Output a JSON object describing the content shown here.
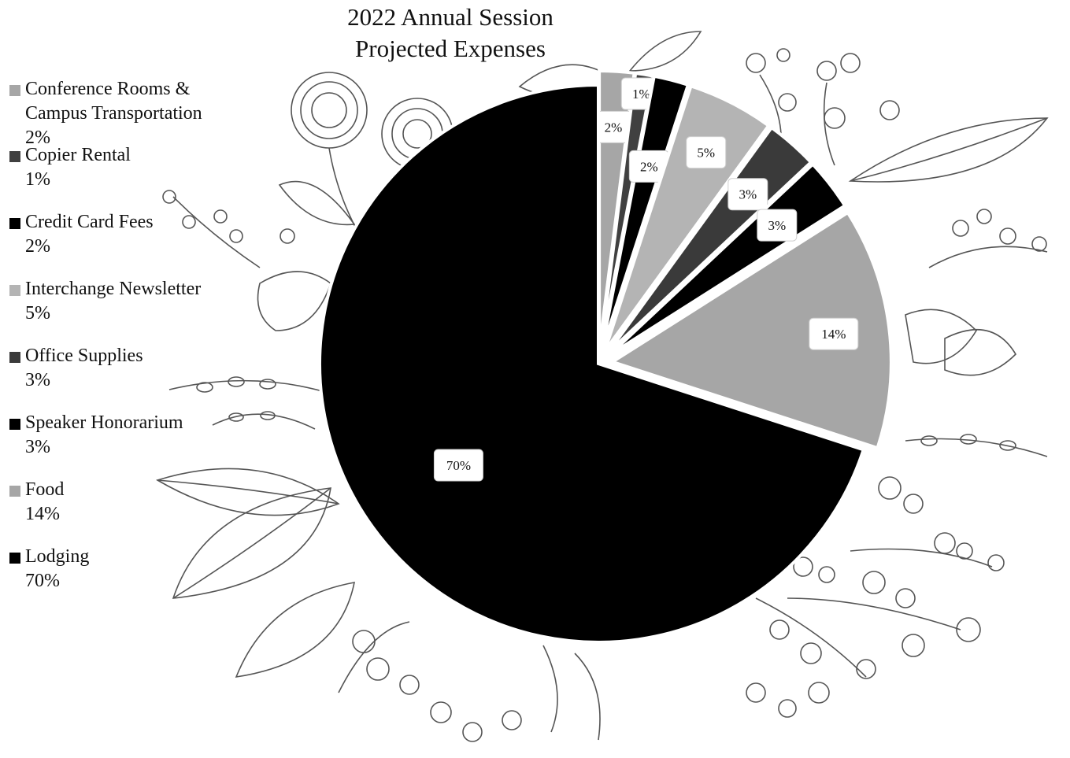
{
  "chart_data": {
    "type": "pie",
    "title_lines": [
      "2022 Annual Session",
      "Projected Expenses"
    ],
    "legend_position": "left",
    "series": [
      {
        "name": "Conference Rooms & Campus Transportation",
        "label": "2%",
        "value": 2,
        "color": "#a6a6a6"
      },
      {
        "name": "Copier Rental",
        "label": "1%",
        "value": 1,
        "color": "#404040"
      },
      {
        "name": "Credit Card Fees",
        "label": "2%",
        "value": 2,
        "color": "#000000"
      },
      {
        "name": "Interchange Newsletter",
        "label": "5%",
        "value": 5,
        "color": "#b4b4b4"
      },
      {
        "name": "Office Supplies",
        "label": "3%",
        "value": 3,
        "color": "#3a3a3a"
      },
      {
        "name": "Speaker Honorarium",
        "label": "3%",
        "value": 3,
        "color": "#000000"
      },
      {
        "name": "Food",
        "label": "14%",
        "value": 14,
        "color": "#a6a6a6"
      },
      {
        "name": "Lodging",
        "label": "70%",
        "value": 70,
        "color": "#000000"
      }
    ]
  }
}
